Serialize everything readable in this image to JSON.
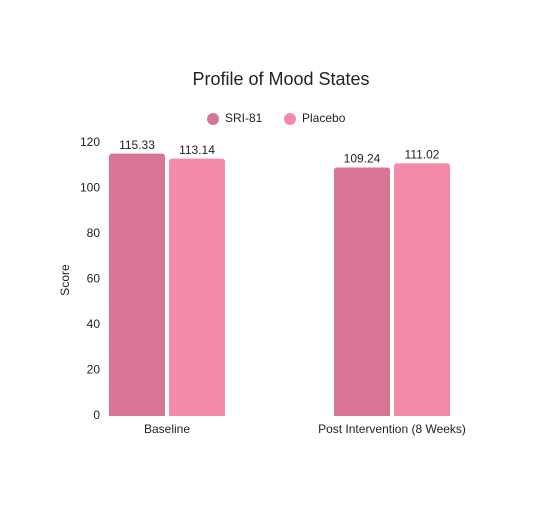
{
  "chart_data": {
    "type": "bar",
    "title": "Profile of Mood States",
    "y_label": "Score",
    "categories": [
      "Baseline",
      "Post Intervention (8 Weeks)"
    ],
    "series": [
      {
        "name": "SRI-81",
        "color": "#d97594",
        "values": [
          115.33,
          109.24
        ]
      },
      {
        "name": "Placebo",
        "color": "#f28aa8",
        "values": [
          113.14,
          111.02
        ]
      }
    ],
    "ylim": [
      0,
      120
    ],
    "yticks": [
      0,
      20,
      40,
      60,
      80,
      100,
      120
    ],
    "grid": false
  }
}
